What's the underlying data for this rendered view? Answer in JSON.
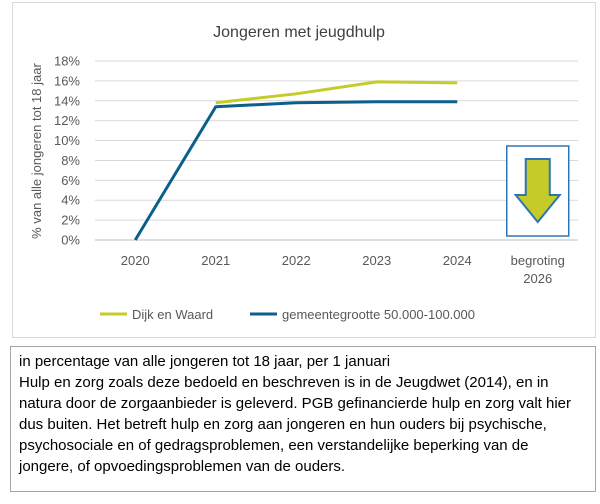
{
  "chart_data": {
    "type": "line",
    "title": "Jongeren met jeugdhulp",
    "ylabel": "% van alle jongeren tot 18 jaar",
    "xlabel": "",
    "ylim": [
      0,
      18
    ],
    "yticks": [
      "0%",
      "2%",
      "4%",
      "6%",
      "8%",
      "10%",
      "12%",
      "14%",
      "16%",
      "18%"
    ],
    "categories": [
      "2020",
      "2021",
      "2022",
      "2023",
      "2024",
      "begroting 2026"
    ],
    "category_lines": [
      [
        "2020"
      ],
      [
        "2021"
      ],
      [
        "2022"
      ],
      [
        "2023"
      ],
      [
        "2024"
      ],
      [
        "begroting",
        "2026"
      ]
    ],
    "series": [
      {
        "name": "Dijk en Waard",
        "color": "#c5cc2a",
        "values": [
          null,
          13.8,
          14.7,
          15.9,
          15.8,
          null
        ]
      },
      {
        "name": "gemeentegrootte 50.000-100.000",
        "color": "#0c5f8c",
        "values": [
          0,
          13.4,
          13.8,
          13.9,
          13.9,
          null
        ]
      }
    ],
    "annotation": {
      "type": "down-arrow-icon",
      "category": "begroting 2026",
      "fill": "#c5cc2a",
      "border": "#2e75b6"
    },
    "legend_position": "bottom"
  },
  "note": {
    "lines": [
      "in percentage van alle jongeren tot 18 jaar, per 1 januari",
      "Hulp en zorg zoals deze bedoeld en beschreven is in de Jeugdwet (2014), en in",
      "natura door de zorgaanbieder is geleverd. PGB gefinancierde hulp en zorg valt hier",
      "dus buiten. Het betreft hulp en zorg aan jongeren en hun ouders bij psychische,",
      "psychosociale en of gedragsproblemen, een verstandelijke beperking van de",
      "jongere, of opvoedingsproblemen van de ouders."
    ]
  }
}
